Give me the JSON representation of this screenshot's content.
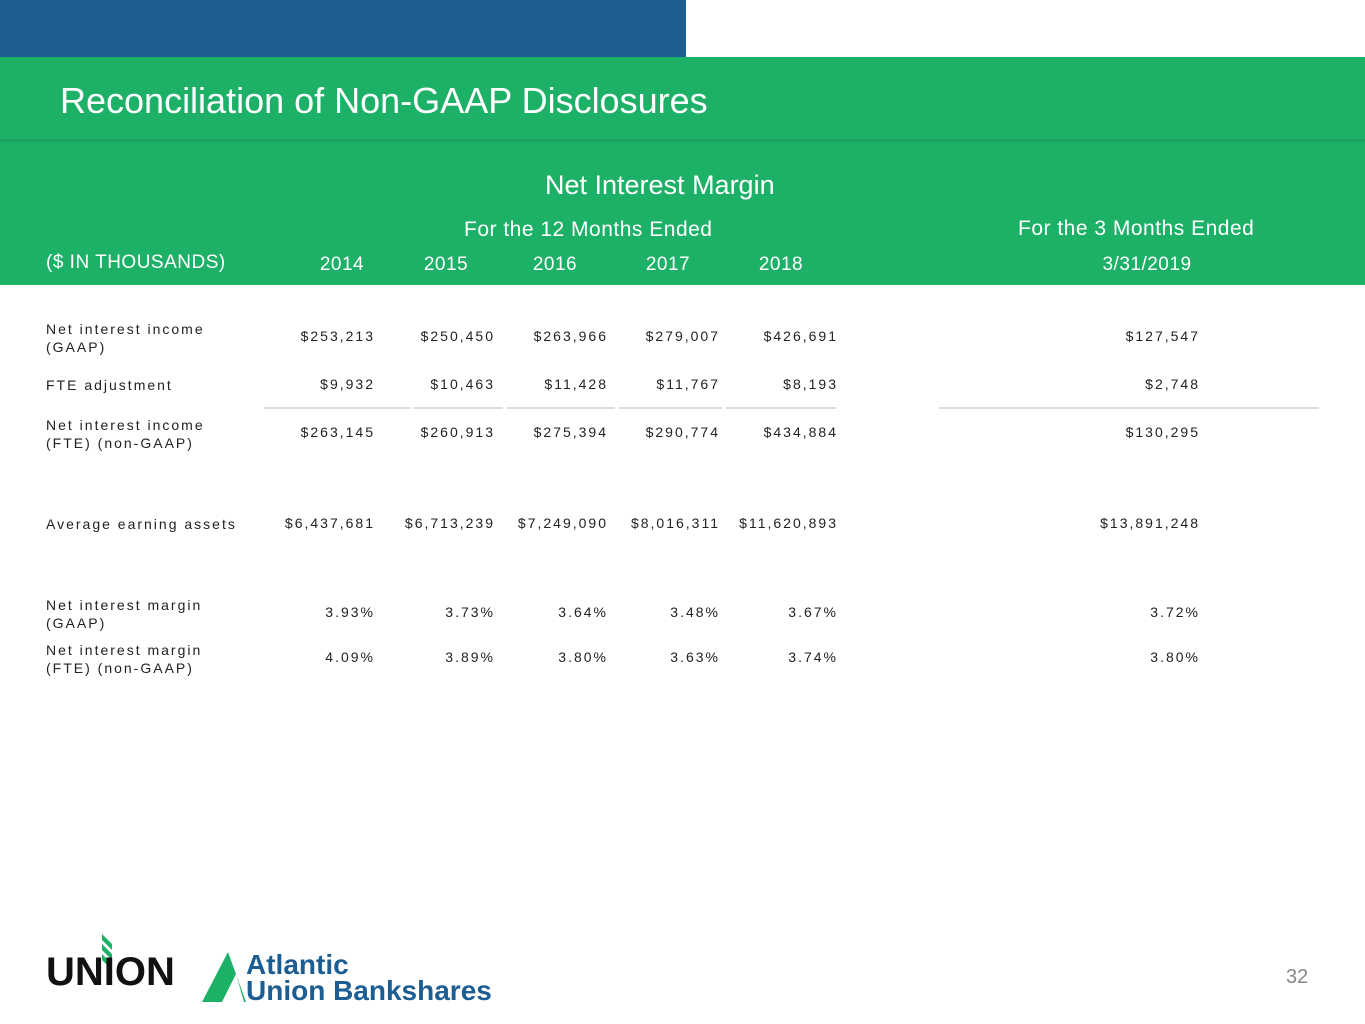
{
  "title": "Reconciliation of Non-GAAP Disclosures",
  "subtitle": "Net Interest Margin",
  "period_12": "For the 12 Months Ended",
  "period_3": "For the 3 Months Ended",
  "units": "($ IN THOUSANDS)",
  "columns": [
    "2014",
    "2015",
    "2016",
    "2017",
    "2018",
    "3/31/2019"
  ],
  "rows": [
    {
      "label": [
        "Net interest income",
        "(GAAP)"
      ],
      "values": [
        "$253,213",
        "$250,450",
        "$263,966",
        "$279,007",
        "$426,691",
        "$127,547"
      ]
    },
    {
      "label": [
        "FTE adjustment",
        ""
      ],
      "values": [
        "$9,932",
        "$10,463",
        "$11,428",
        "$11,767",
        "$8,193",
        "$2,748"
      ]
    },
    {
      "label": [
        "Net interest income",
        "(FTE) (non-GAAP)"
      ],
      "values": [
        "$263,145",
        "$260,913",
        "$275,394",
        "$290,774",
        "$434,884",
        "$130,295"
      ]
    },
    {
      "label": [
        "Average earning assets",
        ""
      ],
      "values": [
        "$6,437,681",
        "$6,713,239",
        "$7,249,090",
        "$8,016,311",
        "$11,620,893",
        "$13,891,248"
      ]
    },
    {
      "label": [
        "Net interest margin",
        "(GAAP)"
      ],
      "values": [
        "3.93%",
        "3.73%",
        "3.64%",
        "3.48%",
        "3.67%",
        "3.72%"
      ]
    },
    {
      "label": [
        "Net interest margin",
        "(FTE) (non-GAAP)"
      ],
      "values": [
        "4.09%",
        "3.89%",
        "3.80%",
        "3.63%",
        "3.74%",
        "3.80%"
      ]
    }
  ],
  "logo": {
    "left": "UNION",
    "right_line1": "Atlantic",
    "right_line2": "Union Bankshares"
  },
  "page_number": "32"
}
